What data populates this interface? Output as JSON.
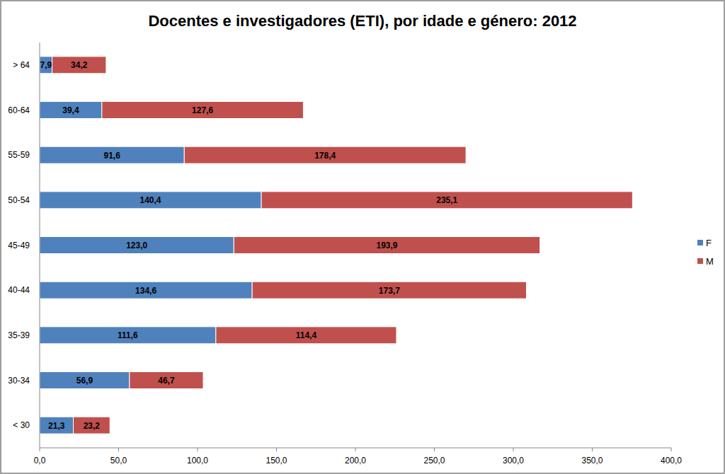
{
  "chart_data": {
    "type": "bar",
    "title": "Docentes e investigadores (ETI), por idade e género: 2012",
    "orientation": "horizontal",
    "stacked": true,
    "data_labels": true,
    "legend": "right",
    "grid": false,
    "categories": [
      "< 30",
      "30-34",
      "35-39",
      "40-44",
      "45-49",
      "50-54",
      "55-59",
      "60-64",
      "> 64"
    ],
    "series": [
      {
        "name": "F",
        "color": "#4f81bd",
        "values": [
          21.3,
          56.9,
          111.6,
          134.6,
          123.0,
          140.4,
          91.6,
          39.4,
          7.9
        ],
        "value_labels": [
          "21,3",
          "56,9",
          "111,6",
          "134,6",
          "123,0",
          "140,4",
          "91,6",
          "39,4",
          "7,9"
        ]
      },
      {
        "name": "M",
        "color": "#c0504d",
        "values": [
          23.2,
          46.7,
          114.4,
          173.7,
          193.9,
          235.1,
          178.4,
          127.6,
          34.2
        ],
        "value_labels": [
          "23,2",
          "46,7",
          "114,4",
          "173,7",
          "193,9",
          "235,1",
          "178,4",
          "127,6",
          "34,2"
        ]
      }
    ],
    "xlim": [
      0,
      400
    ],
    "xticks": [
      {
        "value": 0,
        "label": "0,0"
      },
      {
        "value": 50,
        "label": "50,0"
      },
      {
        "value": 100,
        "label": "100,0"
      },
      {
        "value": 150,
        "label": "150,0"
      },
      {
        "value": 200,
        "label": "200,0"
      },
      {
        "value": 250,
        "label": "250,0"
      },
      {
        "value": 300,
        "label": "300,0"
      },
      {
        "value": 350,
        "label": "350,0"
      },
      {
        "value": 400,
        "label": "400,0"
      }
    ]
  }
}
